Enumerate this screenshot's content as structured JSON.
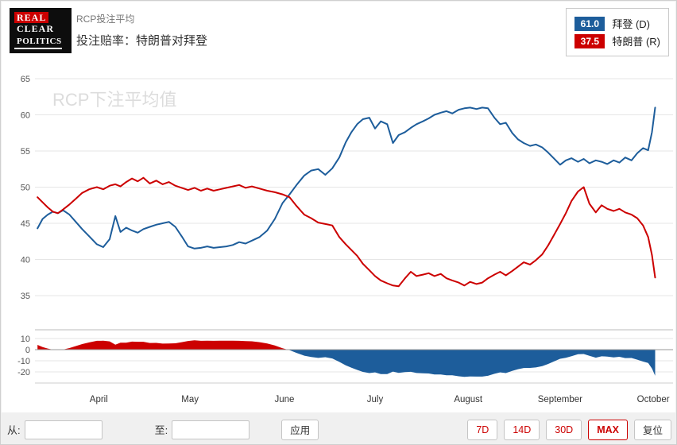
{
  "header": {
    "logo_lines": [
      "REAL",
      "CLEAR",
      "POLITICS"
    ],
    "subtitle": "RCP投注平均",
    "title": "投注赔率：特朗普对拜登"
  },
  "legend": [
    {
      "value": "61.0",
      "label": "拜登 (D)",
      "color": "#1d5d9b"
    },
    {
      "value": "37.5",
      "label": "特朗普 (R)",
      "color": "#cc0000"
    }
  ],
  "chart_data": {
    "type": "line",
    "watermark": "RCP下注平均值",
    "x_unit": "percent across plotted range (late March to early October)",
    "months": [
      {
        "label": "April",
        "pct": 10.0
      },
      {
        "label": "May",
        "pct": 24.3
      },
      {
        "label": "June",
        "pct": 39.1
      },
      {
        "label": "July",
        "pct": 53.3
      },
      {
        "label": "August",
        "pct": 67.9
      },
      {
        "label": "September",
        "pct": 82.3
      },
      {
        "label": "October",
        "pct": 96.9
      }
    ],
    "y_ticks_main": [
      65,
      60,
      55,
      50,
      45,
      40,
      35
    ],
    "ylim_main": [
      35,
      65
    ],
    "y_ticks_diff": [
      10,
      0,
      -10,
      -20
    ],
    "diff_formula": "特朗普 (R) minus 拜登 (D), red when positive, blue when negative",
    "x": [
      0.4,
      1.2,
      2.0,
      2.8,
      3.6,
      4.4,
      5.4,
      6.4,
      7.4,
      8.5,
      9.7,
      10.7,
      11.7,
      12.6,
      13.4,
      14.3,
      15.2,
      16.1,
      17.0,
      18.0,
      19.0,
      20.0,
      21.0,
      22.0,
      23.0,
      24.0,
      25.0,
      26.0,
      27.0,
      28.0,
      29.0,
      30.0,
      31.0,
      32.0,
      33.0,
      34.0,
      35.2,
      36.4,
      37.6,
      38.8,
      39.9,
      41.0,
      42.2,
      43.3,
      44.4,
      45.5,
      46.6,
      47.7,
      48.7,
      49.6,
      50.5,
      51.4,
      52.4,
      53.3,
      54.2,
      55.2,
      56.1,
      57.0,
      58.0,
      58.9,
      59.8,
      60.8,
      61.7,
      62.6,
      63.6,
      64.5,
      65.4,
      66.4,
      67.3,
      68.2,
      69.2,
      70.1,
      71.0,
      72.0,
      72.9,
      73.8,
      74.8,
      75.7,
      76.6,
      77.6,
      78.5,
      79.5,
      80.4,
      81.3,
      82.3,
      83.2,
      84.1,
      85.1,
      86.0,
      86.9,
      87.9,
      88.8,
      89.7,
      90.7,
      91.6,
      92.5,
      93.5,
      94.4,
      95.3,
      96.1,
      96.7,
      97.2
    ],
    "series": [
      {
        "name": "拜登 (D)",
        "color": "#1d5d9b",
        "values": [
          44.3,
          45.6,
          46.2,
          46.6,
          46.4,
          46.8,
          46.2,
          45.2,
          44.2,
          43.2,
          42.1,
          41.7,
          42.8,
          46.0,
          43.8,
          44.4,
          44.0,
          43.7,
          44.2,
          44.5,
          44.8,
          45.0,
          45.2,
          44.5,
          43.2,
          41.8,
          41.5,
          41.6,
          41.8,
          41.6,
          41.7,
          41.8,
          42.0,
          42.4,
          42.2,
          42.6,
          43.1,
          44.0,
          45.6,
          47.8,
          49.0,
          50.3,
          51.6,
          52.3,
          52.5,
          51.7,
          52.6,
          54.1,
          56.2,
          57.6,
          58.7,
          59.4,
          59.6,
          58.1,
          59.1,
          58.7,
          56.1,
          57.2,
          57.6,
          58.2,
          58.7,
          59.1,
          59.5,
          60.0,
          60.3,
          60.5,
          60.2,
          60.7,
          60.9,
          61.0,
          60.8,
          61.0,
          60.9,
          59.6,
          58.7,
          58.9,
          57.5,
          56.6,
          56.1,
          55.7,
          55.9,
          55.5,
          54.8,
          54.0,
          53.1,
          53.7,
          54.0,
          53.5,
          53.9,
          53.3,
          53.7,
          53.5,
          53.2,
          53.7,
          53.4,
          54.1,
          53.7,
          54.7,
          55.4,
          55.1,
          57.6,
          61.0
        ]
      },
      {
        "name": "特朗普 (R)",
        "color": "#cc0000",
        "values": [
          48.6,
          47.9,
          47.2,
          46.6,
          46.4,
          46.9,
          47.6,
          48.4,
          49.2,
          49.7,
          50.0,
          49.7,
          50.2,
          50.4,
          50.1,
          50.7,
          51.2,
          50.8,
          51.3,
          50.5,
          50.9,
          50.4,
          50.7,
          50.2,
          49.9,
          49.6,
          49.9,
          49.5,
          49.8,
          49.5,
          49.7,
          49.9,
          50.1,
          50.3,
          49.9,
          50.1,
          49.8,
          49.5,
          49.3,
          49.0,
          48.6,
          47.4,
          46.2,
          45.7,
          45.1,
          44.9,
          44.7,
          43.1,
          42.1,
          41.3,
          40.5,
          39.4,
          38.5,
          37.7,
          37.1,
          36.7,
          36.4,
          36.3,
          37.4,
          38.3,
          37.7,
          37.9,
          38.1,
          37.7,
          38.0,
          37.4,
          37.1,
          36.8,
          36.4,
          36.9,
          36.6,
          36.8,
          37.4,
          37.9,
          38.3,
          37.8,
          38.4,
          39.0,
          39.6,
          39.3,
          39.9,
          40.7,
          41.9,
          43.3,
          44.9,
          46.4,
          48.1,
          49.4,
          50.0,
          47.7,
          46.5,
          47.5,
          47.0,
          46.7,
          47.0,
          46.5,
          46.2,
          45.7,
          44.7,
          43.1,
          40.6,
          37.5
        ]
      }
    ]
  },
  "controls": {
    "from_label": "从:",
    "from_value": "",
    "to_label": "至:",
    "to_value": "",
    "apply_label": "应用",
    "range_buttons": [
      "7D",
      "14D",
      "30D",
      "MAX",
      "复位"
    ],
    "active_range": "MAX"
  }
}
